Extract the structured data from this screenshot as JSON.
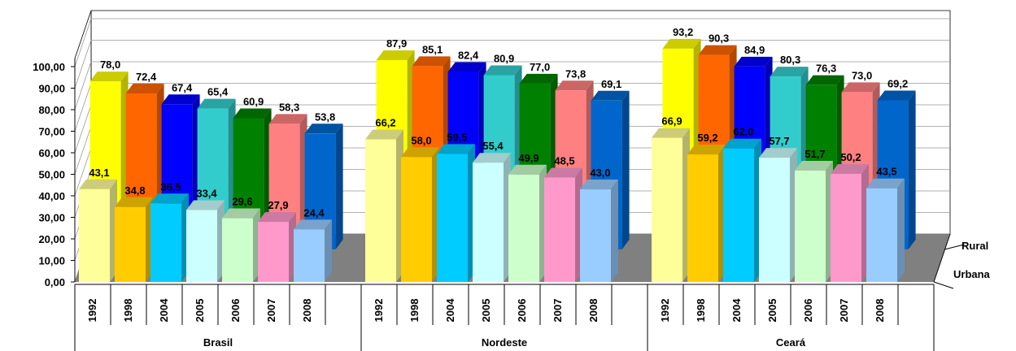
{
  "chart_data": {
    "type": "bar3d",
    "groups": [
      "Brasil",
      "Nordeste",
      "Ceará"
    ],
    "categories": [
      "1992",
      "1998",
      "2004",
      "2005",
      "2006",
      "2007",
      "2008",
      "1992",
      "1998",
      "2004",
      "2005",
      "2006",
      "2007",
      "2008",
      "1992",
      "1998",
      "2004",
      "2005",
      "2006",
      "2007",
      "2008"
    ],
    "series": [
      {
        "name": "Rural",
        "colors": [
          "#ffff00",
          "#ff6600",
          "#0000ff",
          "#33cccc",
          "#008000",
          "#ff8080",
          "#0066cc",
          "#ffff00",
          "#ff6600",
          "#0000ff",
          "#33cccc",
          "#008000",
          "#ff8080",
          "#0066cc",
          "#ffff00",
          "#ff6600",
          "#0000ff",
          "#33cccc",
          "#008000",
          "#ff8080",
          "#0066cc"
        ],
        "values": [
          78.0,
          72.4,
          67.4,
          65.4,
          60.9,
          58.3,
          53.8,
          87.9,
          85.1,
          82.4,
          80.9,
          77.0,
          73.8,
          69.1,
          93.2,
          90.3,
          84.9,
          80.3,
          76.3,
          73.0,
          69.2
        ],
        "value_labels": [
          "78,0",
          "72,4",
          "67,4",
          "65,4",
          "60,9",
          "58,3",
          "53,8",
          "87,9",
          "85,1",
          "82,4",
          "80,9",
          "77,0",
          "73,8",
          "69,1",
          "93,2",
          "90,3",
          "84,9",
          "80,3",
          "76,3",
          "73,0",
          "69,2"
        ]
      },
      {
        "name": "Urbana",
        "colors": [
          "#ffff99",
          "#ffcc00",
          "#00ccff",
          "#ccffff",
          "#ccffcc",
          "#ff99cc",
          "#99ccff",
          "#ffff99",
          "#ffcc00",
          "#00ccff",
          "#ccffff",
          "#ccffcc",
          "#ff99cc",
          "#99ccff",
          "#ffff99",
          "#ffcc00",
          "#00ccff",
          "#ccffff",
          "#ccffcc",
          "#ff99cc",
          "#99ccff"
        ],
        "values": [
          43.1,
          34.8,
          36.5,
          33.4,
          29.6,
          27.9,
          24.4,
          66.2,
          58.0,
          59.5,
          55.4,
          49.9,
          48.5,
          43.0,
          66.9,
          59.2,
          62.0,
          57.7,
          51.7,
          50.2,
          43.5
        ],
        "value_labels": [
          "43,1",
          "34,8",
          "36,5",
          "33,4",
          "29,6",
          "27,9",
          "24,4",
          "66,2",
          "58,0",
          "59,5",
          "55,4",
          "49,9",
          "48,5",
          "43,0",
          "66,9",
          "59,2",
          "62,0",
          "57,7",
          "51,7",
          "50,2",
          "43,5"
        ]
      }
    ],
    "ylim": [
      0,
      100
    ],
    "yticks": [
      {
        "value": 0,
        "label": "0,00"
      },
      {
        "value": 10,
        "label": "10,00"
      },
      {
        "value": 20,
        "label": "20,00"
      },
      {
        "value": 30,
        "label": "30,00"
      },
      {
        "value": 40,
        "label": "40,00"
      },
      {
        "value": 50,
        "label": "50,00"
      },
      {
        "value": 60,
        "label": "60,00"
      },
      {
        "value": 70,
        "label": "70,00"
      },
      {
        "value": 80,
        "label": "80,00"
      },
      {
        "value": 90,
        "label": "90,00"
      },
      {
        "value": 100,
        "label": "100,00"
      }
    ],
    "grid": true
  }
}
